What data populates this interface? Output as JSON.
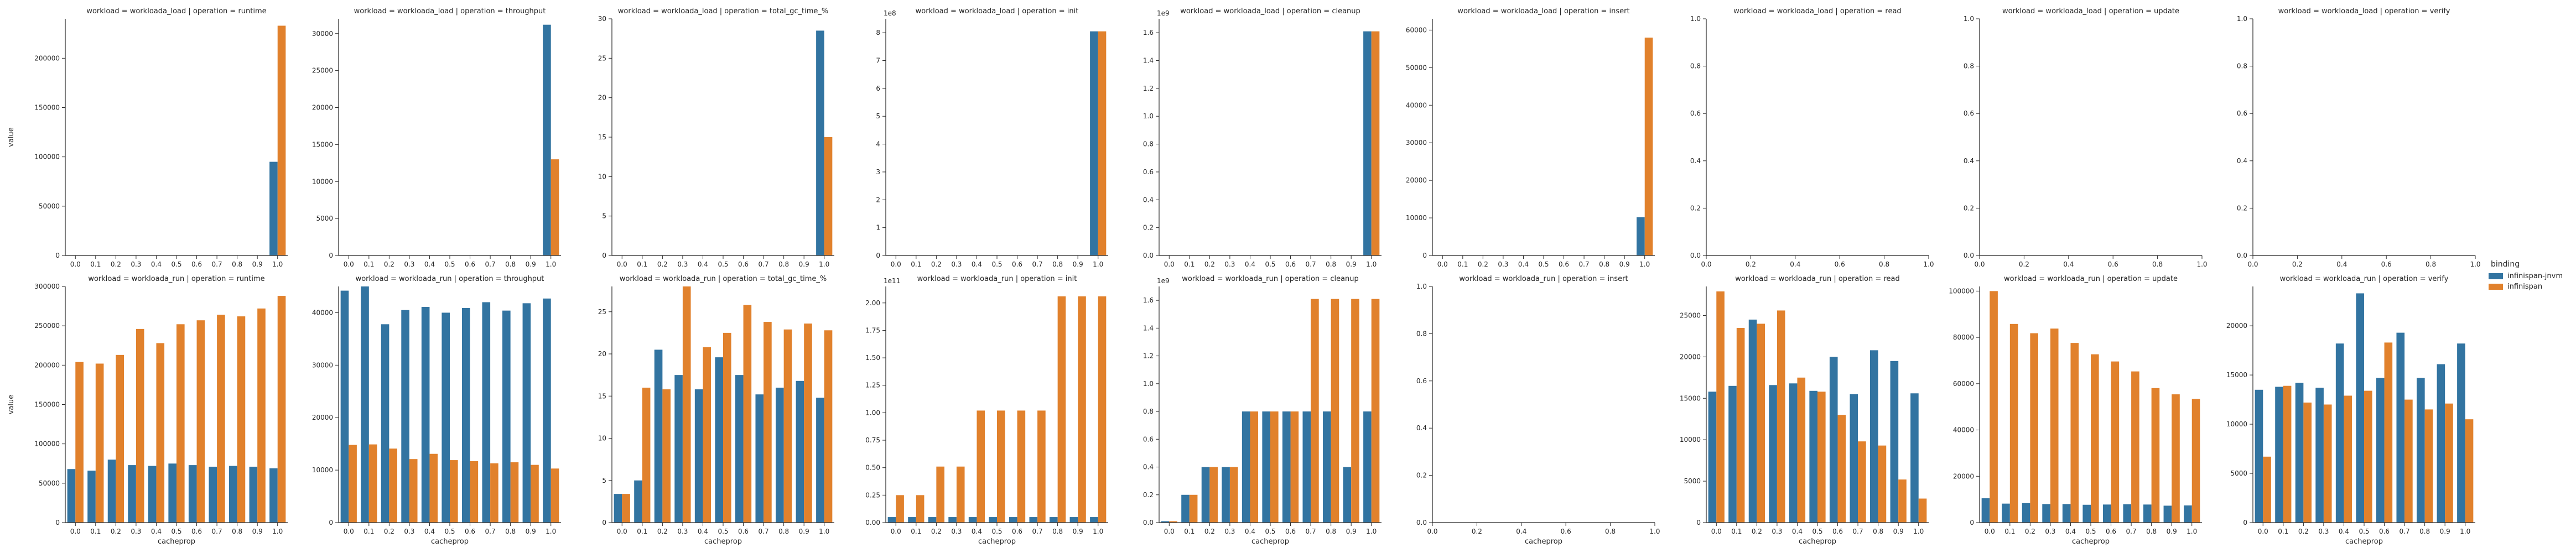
{
  "legend": {
    "title": "binding",
    "entries": [
      {
        "name": "infinispan-jnvm",
        "color": "#3274a1"
      },
      {
        "name": "infinispan",
        "color": "#e1812c"
      }
    ]
  },
  "chart_data": {
    "type": "bar",
    "layout": "facet-grid",
    "x_label": "cacheprop",
    "y_label": "value",
    "categories": [
      "0.0",
      "0.1",
      "0.2",
      "0.3",
      "0.4",
      "0.5",
      "0.6",
      "0.7",
      "0.8",
      "0.9",
      "1.0"
    ],
    "series_names": [
      "infinispan-jnvm",
      "infinispan"
    ],
    "series_colors": [
      "#3274a1",
      "#e1812c"
    ],
    "panels": [
      {
        "title": "workload = workloada_load | operation = runtime",
        "ylim": [
          0,
          240000
        ],
        "yticks": [
          0,
          50000,
          100000,
          150000,
          200000
        ],
        "scale_label": "",
        "values": [
          [
            null,
            null,
            null,
            null,
            null,
            null,
            null,
            null,
            null,
            null,
            95000
          ],
          [
            null,
            null,
            null,
            null,
            null,
            null,
            null,
            null,
            null,
            null,
            233000
          ]
        ]
      },
      {
        "title": "workload = workloada_load | operation = throughput",
        "ylim": [
          0,
          32000
        ],
        "yticks": [
          0,
          5000,
          10000,
          15000,
          20000,
          25000,
          30000
        ],
        "scale_label": "",
        "values": [
          [
            null,
            null,
            null,
            null,
            null,
            null,
            null,
            null,
            null,
            null,
            31200
          ],
          [
            null,
            null,
            null,
            null,
            null,
            null,
            null,
            null,
            null,
            null,
            13000
          ]
        ]
      },
      {
        "title": "workload = workloada_load | operation = total_gc_time_%",
        "ylim": [
          0,
          30
        ],
        "yticks": [
          0,
          5,
          10,
          15,
          20,
          25,
          30
        ],
        "scale_label": "",
        "values": [
          [
            null,
            null,
            null,
            null,
            null,
            null,
            null,
            null,
            null,
            null,
            28.5
          ],
          [
            null,
            null,
            null,
            null,
            null,
            null,
            null,
            null,
            null,
            null,
            15.0
          ]
        ]
      },
      {
        "title": "workload = workloada_load | operation = init",
        "ylim": [
          0,
          8.5
        ],
        "yticks": [
          0,
          1,
          2,
          3,
          4,
          5,
          6,
          7,
          8
        ],
        "scale_label": "1e8",
        "values": [
          [
            null,
            null,
            null,
            null,
            null,
            null,
            null,
            null,
            null,
            null,
            8.05
          ],
          [
            null,
            null,
            null,
            null,
            null,
            null,
            null,
            null,
            null,
            null,
            8.05
          ]
        ]
      },
      {
        "title": "workload = workloada_load | operation = cleanup",
        "ylim": [
          0,
          1.7
        ],
        "yticks": [
          0,
          0.2,
          0.4,
          0.6,
          0.8,
          1.0,
          1.2,
          1.4,
          1.6
        ],
        "scale_label": "1e9",
        "values": [
          [
            null,
            null,
            null,
            null,
            null,
            null,
            null,
            null,
            null,
            null,
            1.61
          ],
          [
            null,
            null,
            null,
            null,
            null,
            null,
            null,
            null,
            null,
            null,
            1.61
          ]
        ]
      },
      {
        "title": "workload = workloada_load | operation = insert",
        "ylim": [
          0,
          63000
        ],
        "yticks": [
          0,
          10000,
          20000,
          30000,
          40000,
          50000,
          60000
        ],
        "scale_label": "",
        "values": [
          [
            null,
            null,
            null,
            null,
            null,
            null,
            null,
            null,
            null,
            null,
            10200
          ],
          [
            null,
            null,
            null,
            null,
            null,
            null,
            null,
            null,
            null,
            null,
            58000
          ]
        ]
      },
      {
        "title": "workload = workloada_load | operation = read",
        "empty": true,
        "ylim": [
          0,
          1
        ],
        "yticks": [
          0,
          0.2,
          0.4,
          0.6,
          0.8,
          1.0
        ],
        "xticks": [
          "0.0",
          "0.2",
          "0.4",
          "0.6",
          "0.8",
          "1.0"
        ]
      },
      {
        "title": "workload = workloada_load | operation = update",
        "empty": true,
        "ylim": [
          0,
          1
        ],
        "yticks": [
          0,
          0.2,
          0.4,
          0.6,
          0.8,
          1.0
        ],
        "xticks": [
          "0.0",
          "0.2",
          "0.4",
          "0.6",
          "0.8",
          "1.0"
        ]
      },
      {
        "title": "workload = workloada_load | operation = verify",
        "empty": true,
        "ylim": [
          0,
          1
        ],
        "yticks": [
          0,
          0.2,
          0.4,
          0.6,
          0.8,
          1.0
        ],
        "xticks": [
          "0.0",
          "0.2",
          "0.4",
          "0.6",
          "0.8",
          "1.0"
        ]
      },
      {
        "title": "workload = workloada_run | operation = runtime",
        "ylim": [
          0,
          300000
        ],
        "yticks": [
          0,
          50000,
          100000,
          150000,
          200000,
          250000,
          300000
        ],
        "scale_label": "",
        "values": [
          [
            68000,
            66000,
            80000,
            73000,
            72000,
            75000,
            73000,
            71000,
            72000,
            71000,
            69000
          ],
          [
            204000,
            202000,
            213000,
            246000,
            228000,
            252000,
            257000,
            264000,
            262000,
            272000,
            288000
          ]
        ]
      },
      {
        "title": "workload = workloada_run | operation = throughput",
        "ylim": [
          0,
          45000
        ],
        "yticks": [
          0,
          10000,
          20000,
          30000,
          40000
        ],
        "scale_label": "",
        "values": [
          [
            44200,
            45000,
            37800,
            40500,
            41100,
            40000,
            40900,
            42000,
            40400,
            41800,
            42700
          ],
          [
            14800,
            14900,
            14100,
            12100,
            13100,
            11900,
            11700,
            11300,
            11500,
            11000,
            10300
          ]
        ]
      },
      {
        "title": "workload = workloada_run | operation = total_gc_time_%",
        "ylim": [
          0,
          28
        ],
        "yticks": [
          0,
          5,
          10,
          15,
          20,
          25
        ],
        "scale_label": "",
        "values": [
          [
            3.4,
            5.0,
            20.5,
            17.5,
            15.8,
            19.6,
            17.5,
            15.2,
            16.0,
            16.8,
            14.8
          ],
          [
            3.4,
            16.0,
            15.8,
            28.0,
            20.8,
            22.5,
            25.8,
            23.8,
            22.9,
            23.6,
            22.8
          ]
        ]
      },
      {
        "title": "workload = workloada_run | operation = init",
        "ylim": [
          0,
          2.15
        ],
        "yticks": [
          0,
          0.25,
          0.5,
          0.75,
          1.0,
          1.25,
          1.5,
          1.75,
          2.0
        ],
        "scale_label": "1e11",
        "values": [
          [
            0.05,
            0.05,
            0.05,
            0.05,
            0.05,
            0.05,
            0.05,
            0.05,
            0.05,
            0.05,
            0.05
          ],
          [
            0.25,
            0.25,
            0.51,
            0.51,
            1.02,
            1.02,
            1.02,
            1.02,
            2.06,
            2.06,
            2.06
          ]
        ]
      },
      {
        "title": "workload = workloada_run | operation = cleanup",
        "ylim": [
          0,
          1.7
        ],
        "yticks": [
          0,
          0.2,
          0.4,
          0.6,
          0.8,
          1.0,
          1.2,
          1.4,
          1.6
        ],
        "scale_label": "1e9",
        "values": [
          [
            0.01,
            0.2,
            0.4,
            0.4,
            0.8,
            0.8,
            0.8,
            0.8,
            0.8,
            0.4,
            0.8
          ],
          [
            0.01,
            0.2,
            0.4,
            0.4,
            0.8,
            0.8,
            0.8,
            1.61,
            1.61,
            1.61,
            1.61
          ]
        ]
      },
      {
        "title": "workload = workloada_run | operation = insert",
        "empty": true,
        "ylim": [
          0,
          1
        ],
        "yticks": [
          0,
          0.2,
          0.4,
          0.6,
          0.8,
          1.0
        ],
        "xticks": [
          "0.0",
          "0.2",
          "0.4",
          "0.6",
          "0.8",
          "1.0"
        ]
      },
      {
        "title": "workload = workloada_run | operation = read",
        "ylim": [
          0,
          28500
        ],
        "yticks": [
          0,
          5000,
          10000,
          15000,
          20000,
          25000
        ],
        "scale_label": "",
        "values": [
          [
            15800,
            16500,
            24500,
            16600,
            16800,
            15900,
            20000,
            15500,
            20800,
            19500,
            15600
          ],
          [
            27900,
            23500,
            24000,
            25600,
            17500,
            15800,
            13000,
            9800,
            9300,
            5200,
            2900
          ]
        ]
      },
      {
        "title": "workload = workloada_run | operation = update",
        "ylim": [
          0,
          102000
        ],
        "yticks": [
          0,
          20000,
          40000,
          60000,
          80000,
          100000
        ],
        "scale_label": "",
        "values": [
          [
            10500,
            8200,
            8400,
            8000,
            8000,
            7700,
            7800,
            7900,
            7800,
            7300,
            7400
          ],
          [
            100000,
            85800,
            81800,
            83800,
            77600,
            72700,
            69600,
            65300,
            58100,
            55400,
            53400
          ]
        ]
      },
      {
        "title": "workload = workloada_run | operation = verify",
        "ylim": [
          0,
          24000
        ],
        "yticks": [
          0,
          5000,
          10000,
          15000,
          20000
        ],
        "scale_label": "",
        "values": [
          [
            13500,
            13800,
            14200,
            13700,
            18200,
            23300,
            14700,
            19300,
            14700,
            16100,
            18200
          ],
          [
            6700,
            13900,
            12200,
            12000,
            12900,
            13400,
            18300,
            12500,
            11500,
            12100,
            10500
          ]
        ]
      }
    ]
  }
}
